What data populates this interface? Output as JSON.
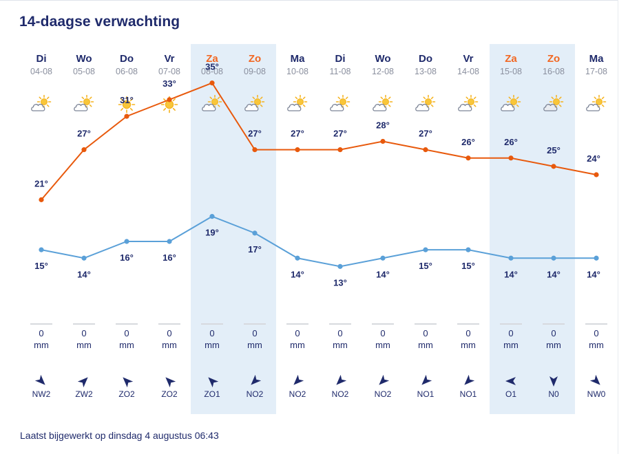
{
  "title": "14-daagse verwachting",
  "footer": "Laatst bijgewerkt op dinsdag 4 augustus 06:43",
  "colors": {
    "max_line": "#e8590c",
    "min_line": "#5aa0d8",
    "weekend_band": "#e3eef8",
    "weekend_text": "#f26722"
  },
  "days": [
    {
      "day": "Di",
      "date": "04-08",
      "weekend": false,
      "icon": "sun-behind-cloud-icon",
      "precip": "0",
      "unit": "mm",
      "wind_dir": "NW",
      "wind": "NW2"
    },
    {
      "day": "Wo",
      "date": "05-08",
      "weekend": false,
      "icon": "sun-behind-cloud-icon",
      "precip": "0",
      "unit": "mm",
      "wind_dir": "ZW",
      "wind": "ZW2"
    },
    {
      "day": "Do",
      "date": "06-08",
      "weekend": false,
      "icon": "sun-icon",
      "precip": "0",
      "unit": "mm",
      "wind_dir": "ZO",
      "wind": "ZO2"
    },
    {
      "day": "Vr",
      "date": "07-08",
      "weekend": false,
      "icon": "sun-icon",
      "precip": "0",
      "unit": "mm",
      "wind_dir": "ZO",
      "wind": "ZO2"
    },
    {
      "day": "Za",
      "date": "08-08",
      "weekend": true,
      "icon": "sun-behind-cloud-icon",
      "precip": "0",
      "unit": "mm",
      "wind_dir": "ZO",
      "wind": "ZO1"
    },
    {
      "day": "Zo",
      "date": "09-08",
      "weekend": true,
      "icon": "sun-behind-cloud-icon",
      "precip": "0",
      "unit": "mm",
      "wind_dir": "NO",
      "wind": "NO2"
    },
    {
      "day": "Ma",
      "date": "10-08",
      "weekend": false,
      "icon": "sun-behind-cloud-icon",
      "precip": "0",
      "unit": "mm",
      "wind_dir": "NO",
      "wind": "NO2"
    },
    {
      "day": "Di",
      "date": "11-08",
      "weekend": false,
      "icon": "sun-behind-cloud-icon",
      "precip": "0",
      "unit": "mm",
      "wind_dir": "NO",
      "wind": "NO2"
    },
    {
      "day": "Wo",
      "date": "12-08",
      "weekend": false,
      "icon": "sun-behind-cloud-icon",
      "precip": "0",
      "unit": "mm",
      "wind_dir": "NO",
      "wind": "NO2"
    },
    {
      "day": "Do",
      "date": "13-08",
      "weekend": false,
      "icon": "sun-behind-cloud-icon",
      "precip": "0",
      "unit": "mm",
      "wind_dir": "NO",
      "wind": "NO1"
    },
    {
      "day": "Vr",
      "date": "14-08",
      "weekend": false,
      "icon": "sun-behind-cloud-icon",
      "precip": "0",
      "unit": "mm",
      "wind_dir": "NO",
      "wind": "NO1"
    },
    {
      "day": "Za",
      "date": "15-08",
      "weekend": true,
      "icon": "sun-behind-cloud-icon",
      "precip": "0",
      "unit": "mm",
      "wind_dir": "O",
      "wind": "O1"
    },
    {
      "day": "Zo",
      "date": "16-08",
      "weekend": true,
      "icon": "cloud-with-sun-icon",
      "precip": "0",
      "unit": "mm",
      "wind_dir": "N",
      "wind": "N0"
    },
    {
      "day": "Ma",
      "date": "17-08",
      "weekend": false,
      "icon": "sun-behind-cloud-icon",
      "precip": "0",
      "unit": "mm",
      "wind_dir": "NW",
      "wind": "NW0"
    }
  ],
  "chart_data": {
    "type": "line",
    "categories": [
      "04-08",
      "05-08",
      "06-08",
      "07-08",
      "08-08",
      "09-08",
      "10-08",
      "11-08",
      "12-08",
      "13-08",
      "14-08",
      "15-08",
      "16-08",
      "17-08"
    ],
    "series": [
      {
        "values": [
          21,
          27,
          31,
          33,
          35,
          27,
          27,
          27,
          28,
          27,
          26,
          26,
          25,
          24
        ]
      },
      {
        "values": [
          15,
          14,
          16,
          16,
          19,
          17,
          14,
          13,
          14,
          15,
          15,
          14,
          14,
          14
        ]
      }
    ],
    "unit": "°",
    "ylim": [
      8,
      40
    ],
    "grid": false
  }
}
